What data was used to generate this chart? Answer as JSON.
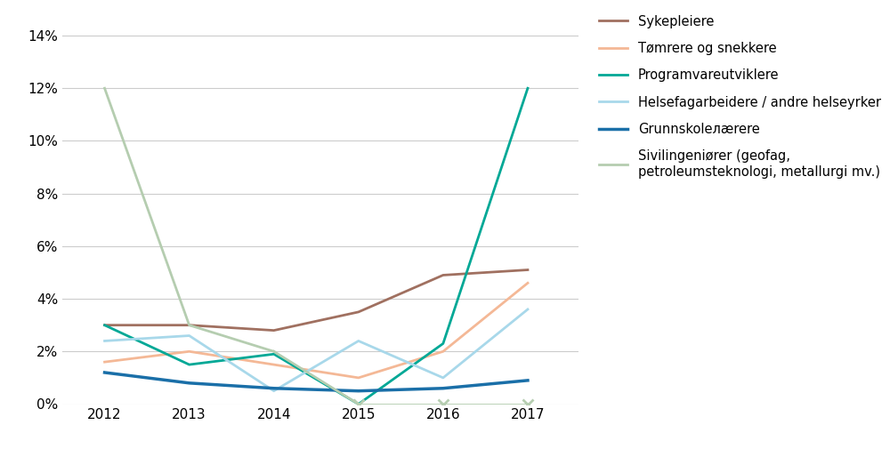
{
  "years": [
    2012,
    2013,
    2014,
    2015,
    2016,
    2017
  ],
  "series": [
    {
      "label": "Sykepleiere",
      "color": "#a07060",
      "linewidth": 2.0,
      "values": [
        0.03,
        0.03,
        0.028,
        0.035,
        0.049,
        0.051
      ],
      "special": false
    },
    {
      "label": "Tømrere og snekkere",
      "color": "#f4b896",
      "linewidth": 2.0,
      "values": [
        0.016,
        0.02,
        0.015,
        0.01,
        0.02,
        0.046
      ],
      "special": false
    },
    {
      "label": "Programvareutviklere",
      "color": "#00a896",
      "linewidth": 2.0,
      "values": [
        0.03,
        0.015,
        0.019,
        0.0,
        0.023,
        0.12
      ],
      "special": false
    },
    {
      "label": "Helsefagarbeidere / andre helseyrker",
      "color": "#a8d8ea",
      "linewidth": 2.0,
      "values": [
        0.024,
        0.026,
        0.005,
        0.024,
        0.01,
        0.036
      ],
      "special": false
    },
    {
      "label": "Grunnskoleлærere",
      "color": "#1a6fa8",
      "linewidth": 2.5,
      "values": [
        0.012,
        0.008,
        0.006,
        0.005,
        0.006,
        0.009
      ],
      "special": false
    },
    {
      "label": "Sivilingeniører (geofag,\npetroleumsteknologi, metallurgi mv.)",
      "color": "#b5cdb0",
      "linewidth": 2.0,
      "values": [
        0.12,
        0.03,
        0.02,
        0.0,
        0.0,
        0.0
      ],
      "special": true,
      "line_years": [
        2012,
        2013,
        2014
      ],
      "line_vals": [
        0.12,
        0.03,
        0.02
      ],
      "marker_years": [
        2015,
        2016,
        2017
      ],
      "marker_vals": [
        0.0,
        0.0,
        0.0
      ]
    }
  ],
  "ylim": [
    0.0,
    0.145
  ],
  "yticks": [
    0.0,
    0.02,
    0.04,
    0.06,
    0.08,
    0.1,
    0.12,
    0.14
  ],
  "ytick_labels": [
    "0%",
    "2%",
    "4%",
    "6%",
    "8%",
    "10%",
    "12%",
    "14%"
  ],
  "xlim": [
    2011.5,
    2017.6
  ],
  "background_color": "#ffffff",
  "grid_color": "#cccccc",
  "grid_linewidth": 0.8,
  "legend_fontsize": 10.5,
  "axis_fontsize": 11
}
